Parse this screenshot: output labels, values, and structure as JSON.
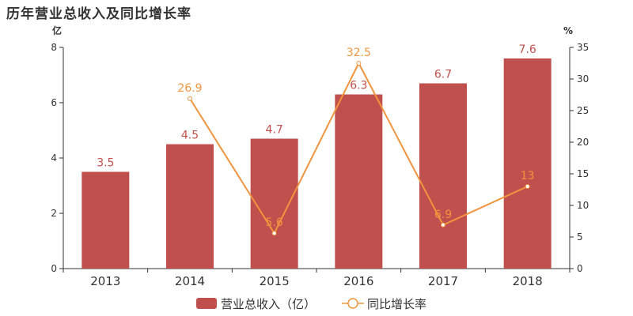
{
  "colors": {
    "bar": "#c0504d",
    "line": "#f0953f",
    "axis": "#333333",
    "bar_label": "#c0504d",
    "line_label": "#f0953f"
  },
  "chart_data": {
    "type": "bar",
    "title": "历年营业总收入及同比增长率",
    "categories": [
      "2013",
      "2014",
      "2015",
      "2016",
      "2017",
      "2018"
    ],
    "y_unit_left": "亿",
    "y_unit_right": "%",
    "ylim_left": [
      0,
      8
    ],
    "yticks_left": [
      "0",
      "2",
      "4",
      "6",
      "8"
    ],
    "ylim_right": [
      0,
      35
    ],
    "yticks_right": [
      "0",
      "5",
      "10",
      "15",
      "20",
      "25",
      "30",
      "35"
    ],
    "grid": false,
    "legend_position": "bottom",
    "series": [
      {
        "name": "营业总收入（亿）",
        "type": "bar",
        "axis": "left",
        "values": [
          3.5,
          4.5,
          4.7,
          6.3,
          6.7,
          7.6
        ],
        "labels": [
          "3.5",
          "4.5",
          "4.7",
          "6.3",
          "6.7",
          "7.6"
        ]
      },
      {
        "name": "同比增长率",
        "type": "line",
        "axis": "right",
        "values": [
          null,
          26.9,
          5.6,
          32.5,
          6.9,
          13
        ],
        "labels": [
          "",
          "26.9",
          "5.6",
          "32.5",
          "6.9",
          "13"
        ]
      }
    ]
  }
}
